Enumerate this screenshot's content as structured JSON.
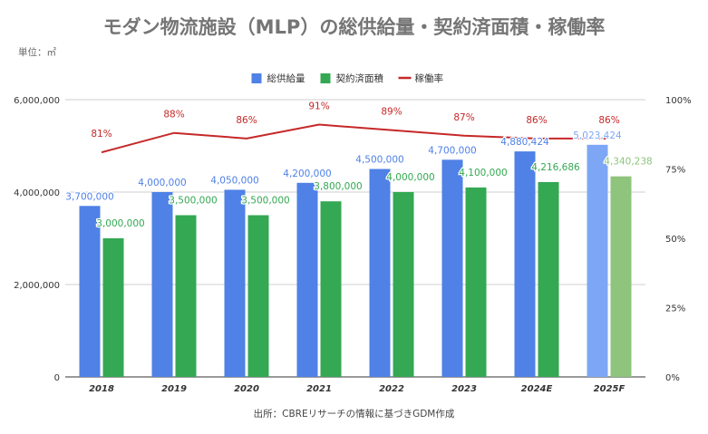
{
  "title": "モダン物流施設（MLP）の総供給量・契約済面積・稼働率",
  "unit_label": "単位：㎡",
  "source": "出所：CBREリサーチの情報に基づきGDM作成",
  "chart_data": {
    "type": "bar",
    "categories": [
      "2018",
      "2019",
      "2020",
      "2021",
      "2022",
      "2023",
      "2024E",
      "2025F"
    ],
    "series": [
      {
        "name": "総供給量",
        "type": "bar",
        "color": "#4f81e6",
        "forecast_color": "#7da7f5",
        "values": [
          3700000,
          4000000,
          4050000,
          4200000,
          4500000,
          4700000,
          4880424,
          5023424
        ],
        "labels": [
          "3,700,000",
          "4,000,000",
          "4,050,000",
          "4,200,000",
          "4,500,000",
          "4,700,000",
          "4,880,424",
          "5,023,424"
        ]
      },
      {
        "name": "契約済面積",
        "type": "bar",
        "color": "#34a853",
        "forecast_color": "#8ec47c",
        "values": [
          3000000,
          3500000,
          3500000,
          3800000,
          4000000,
          4100000,
          4216686,
          4340238
        ],
        "labels": [
          "3,000,000",
          "3,500,000",
          "3,500,000",
          "3,800,000",
          "4,000,000",
          "4,100,000",
          "4,216,686",
          "4,340,238"
        ]
      },
      {
        "name": "稼働率",
        "type": "line",
        "color": "#c62828",
        "axis": "right",
        "values": [
          81,
          88,
          86,
          91,
          89,
          87,
          86,
          86
        ],
        "labels": [
          "81%",
          "88%",
          "86%",
          "91%",
          "89%",
          "87%",
          "86%",
          "86%"
        ]
      }
    ],
    "y_left": {
      "ylim": [
        0,
        6000000
      ],
      "ticks": [
        0,
        2000000,
        4000000,
        6000000
      ],
      "tick_labels": [
        "0",
        "2,000,000",
        "4,000,000",
        "6,000,000"
      ]
    },
    "y_right": {
      "ylim": [
        0,
        100
      ],
      "ticks": [
        0,
        25,
        50,
        75,
        100
      ],
      "tick_labels": [
        "0%",
        "25%",
        "50%",
        "75%",
        "100%"
      ]
    },
    "forecast_index": 7,
    "legend_position": "top-center",
    "grid": true
  }
}
